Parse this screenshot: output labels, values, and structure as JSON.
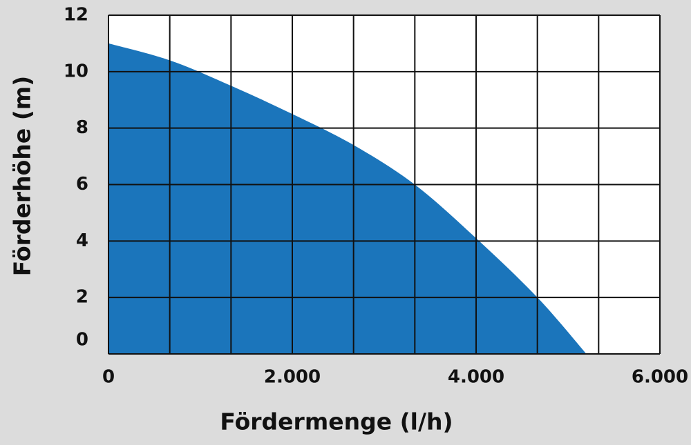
{
  "chart_data": {
    "type": "area",
    "xlabel": "Fördermenge (l/h)",
    "ylabel": "Förderhöhe (m)",
    "x": [
      0,
      667,
      1333,
      2000,
      2667,
      3333,
      4000,
      4667,
      5200
    ],
    "values": [
      11,
      10.4,
      9.5,
      8.5,
      7.4,
      6,
      4.1,
      2,
      0
    ],
    "color": "#1b75bb",
    "xlim": [
      0,
      6000
    ],
    "ylim": [
      0,
      12
    ],
    "xticks": [
      0,
      {
        "value": 2000,
        "label": "2.000"
      },
      {
        "value": 4000,
        "label": "4.000"
      },
      {
        "value": 6000,
        "label": "6.000"
      }
    ],
    "yticks": [
      0,
      2,
      4,
      6,
      8,
      10,
      12
    ],
    "xgrid": [
      666.667,
      1333.333,
      2000,
      2666.667,
      3333.333,
      4000,
      4666.667,
      5333.333
    ],
    "grid": true
  }
}
